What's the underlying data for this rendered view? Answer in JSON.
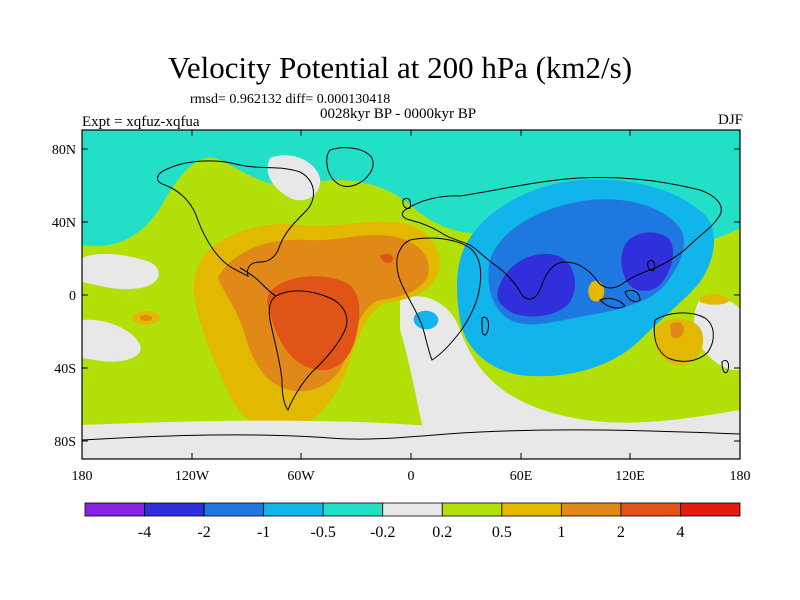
{
  "title": "Velocity Potential at 200 hPa (km2/s)",
  "stats": "rmsd= 0.962132 diff= 0.000130418",
  "period": "0028kyr BP - 0000kyr BP",
  "expt": "Expt = xqfuz-xqfua",
  "season": "DJF",
  "lat_labels": [
    "80N",
    "40N",
    "0",
    "40S",
    "80S"
  ],
  "lon_labels": [
    "180",
    "120W",
    "60W",
    "0",
    "60E",
    "120E",
    "180"
  ],
  "colorbar": {
    "labels": [
      "-4",
      "-2",
      "-1",
      "-0.5",
      "-0.2",
      "0.2",
      "0.5",
      "1",
      "2",
      "4"
    ],
    "colors": [
      "#8a22e0",
      "#2f2fdc",
      "#1f78e0",
      "#12b4ec",
      "#22e0c8",
      "#e8e8e8",
      "#b4e00a",
      "#e2b800",
      "#e08818",
      "#e05418",
      "#e41c10"
    ]
  }
}
